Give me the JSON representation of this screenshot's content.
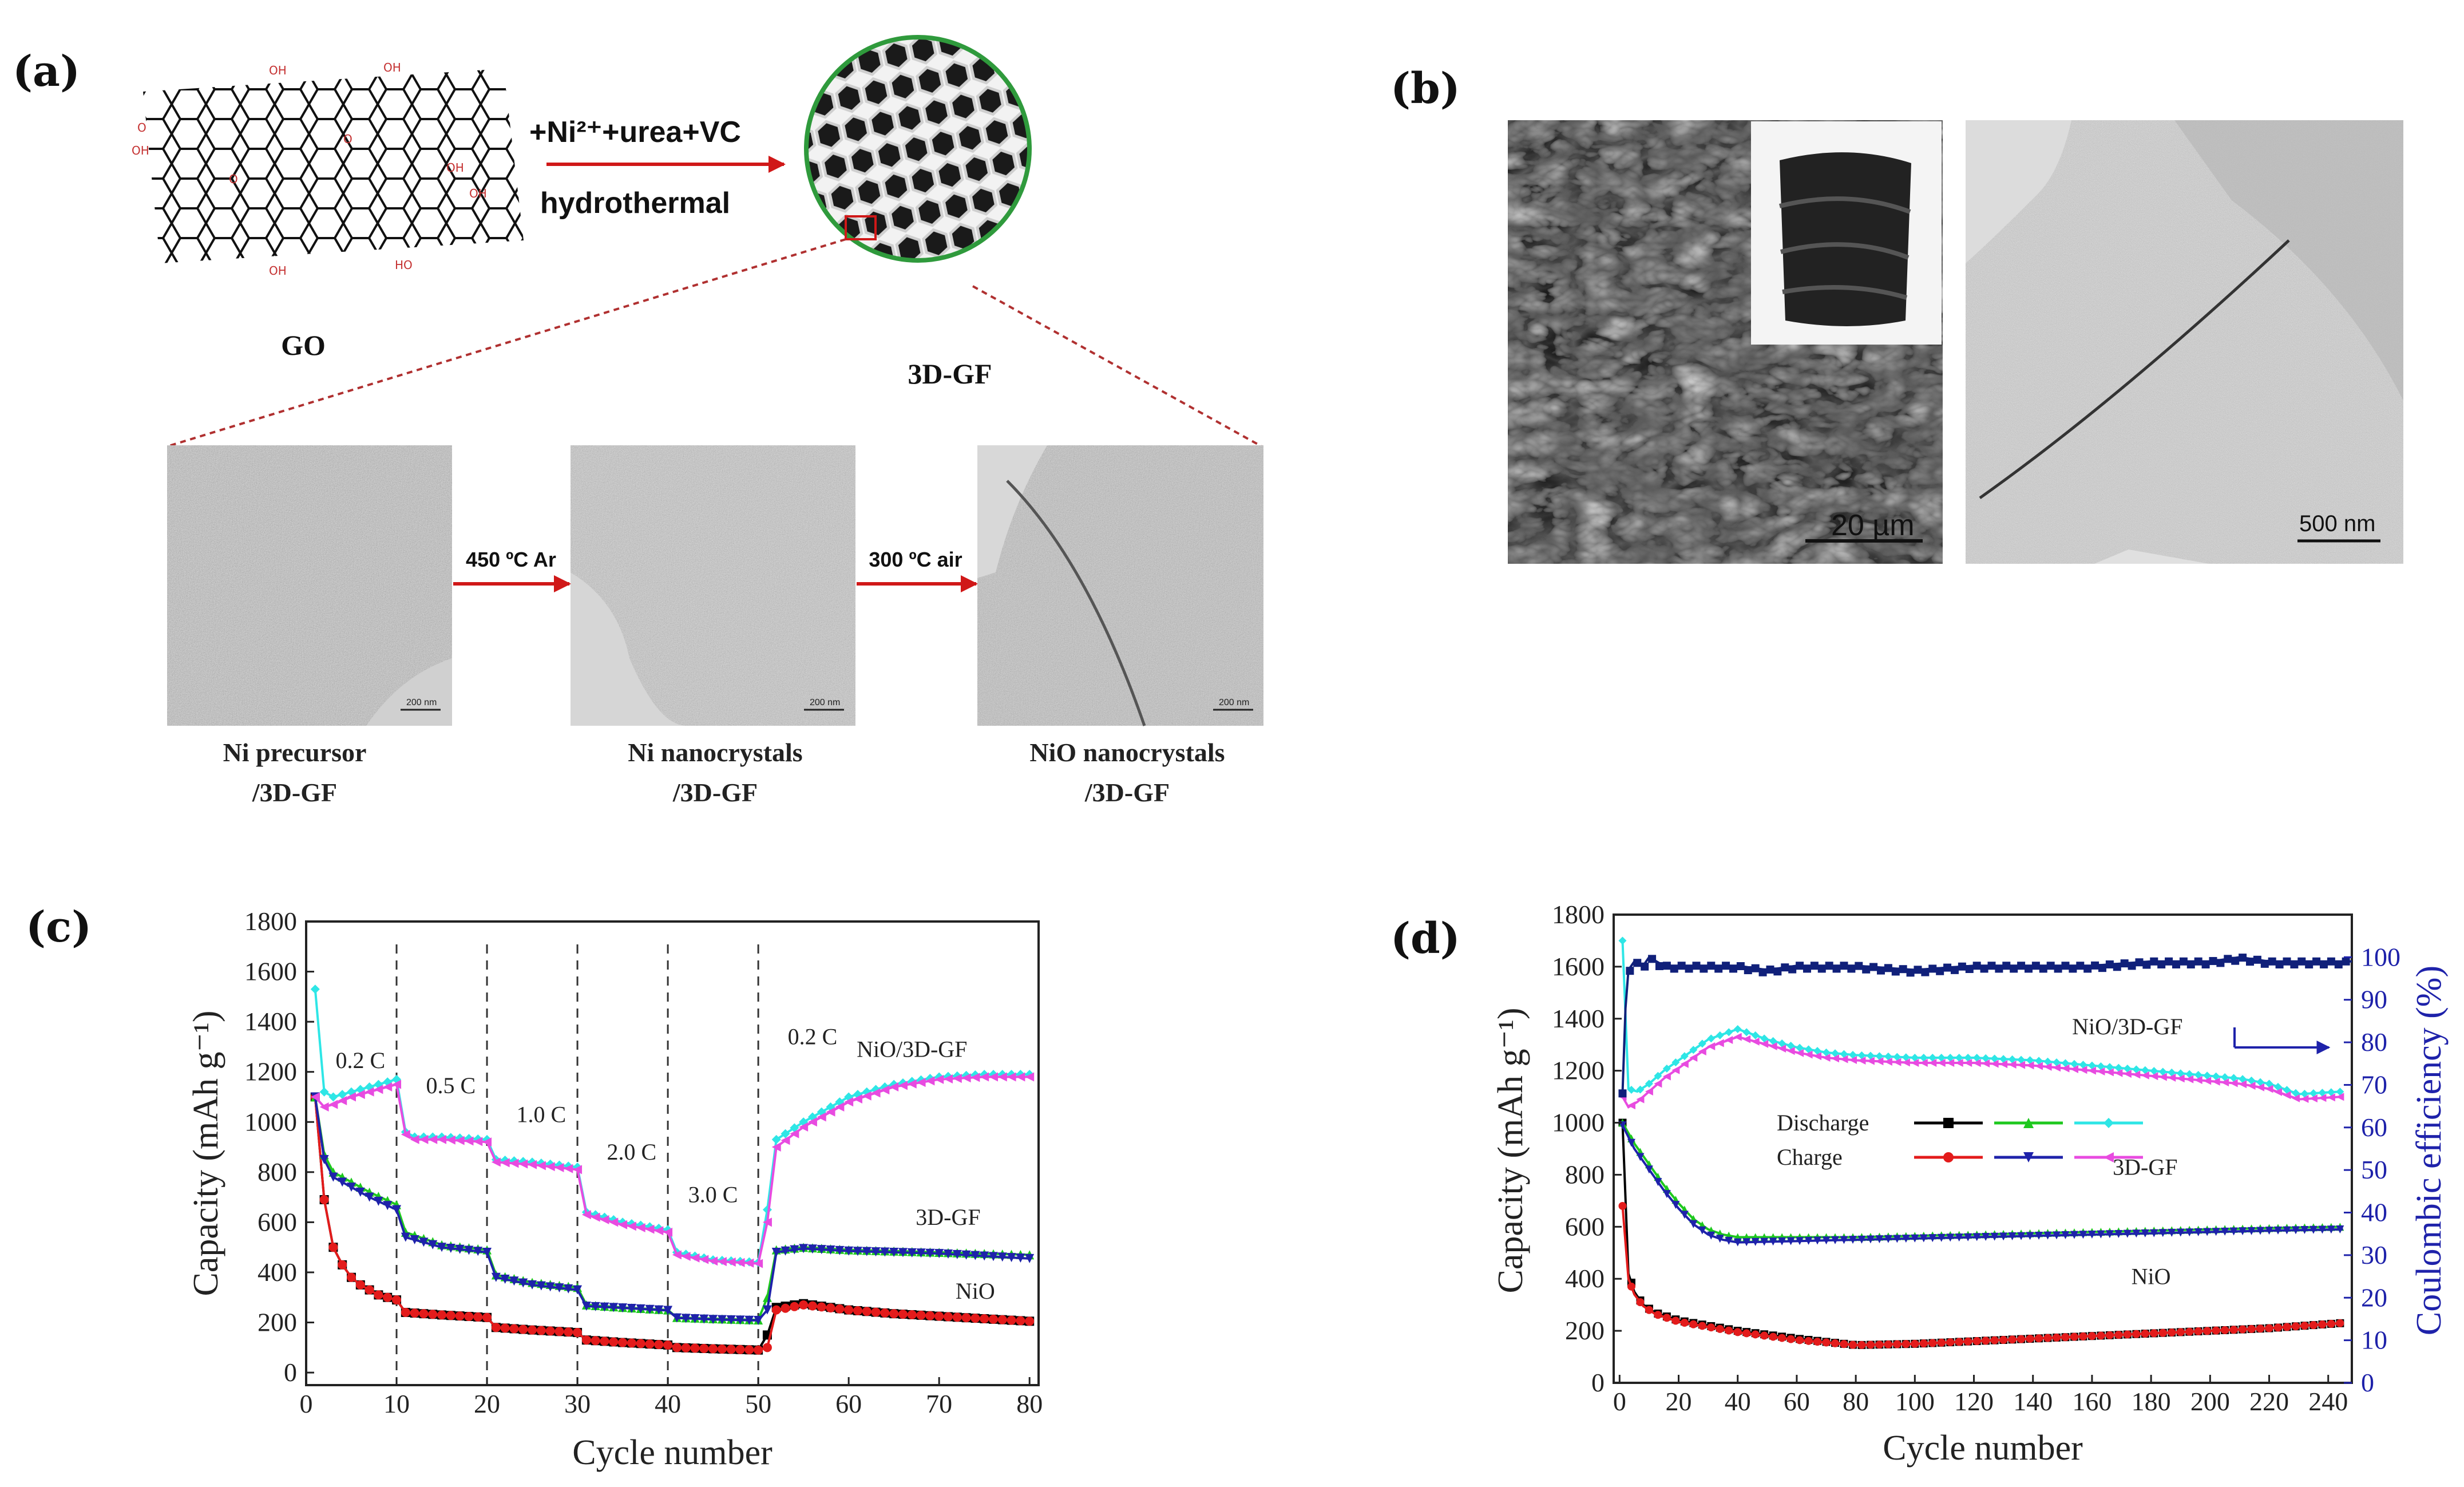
{
  "panel_labels": {
    "a": "(a)",
    "b": "(b)",
    "c": "(c)",
    "d": "(d)"
  },
  "schematic": {
    "go_label": "GO",
    "gf_label": "3D-GF",
    "reagents": "+Ni²⁺+urea+VC",
    "process": "hydrothermal",
    "step1": "450 ºC Ar",
    "step2": "300 ºC air",
    "tem": [
      {
        "line1": "Ni precursor",
        "line2": "/3D-GF",
        "scale": "200 nm"
      },
      {
        "line1": "Ni nanocrystals",
        "line2": "/3D-GF",
        "scale": "200 nm"
      },
      {
        "line1": "NiO nanocrystals",
        "line2": "/3D-GF",
        "scale": "200 nm"
      }
    ]
  },
  "micrographs": {
    "sem_scale": "20 µm",
    "tem_scale": "500 nm"
  },
  "chart_data": [
    {
      "type": "line",
      "panel": "c",
      "xlabel": "Cycle number",
      "ylabel": "Capacity (mAh g⁻¹)",
      "xlim": [
        0,
        81
      ],
      "ylim": [
        -50,
        1800
      ],
      "xticks": [
        0,
        10,
        20,
        30,
        40,
        50,
        60,
        70,
        80
      ],
      "yticks": [
        0,
        200,
        400,
        600,
        800,
        1000,
        1200,
        1400,
        1600,
        1800
      ],
      "dividers": [
        10,
        20,
        30,
        40,
        50
      ],
      "rate_labels": [
        {
          "text": "0.2 C",
          "x": 6,
          "y": 1215
        },
        {
          "text": "0.5 C",
          "x": 16,
          "y": 1115
        },
        {
          "text": "1.0 C",
          "x": 26,
          "y": 1000
        },
        {
          "text": "2.0 C",
          "x": 36,
          "y": 850
        },
        {
          "text": "3.0 C",
          "x": 45,
          "y": 680
        },
        {
          "text": "0.2 C",
          "x": 56,
          "y": 1310
        }
      ],
      "series_labels": [
        {
          "text": "NiO/3D-GF",
          "x": 67,
          "y": 1260
        },
        {
          "text": "3D-GF",
          "x": 71,
          "y": 590
        },
        {
          "text": "NiO",
          "x": 74,
          "y": 295
        }
      ],
      "series": [
        {
          "color": "#000000",
          "marker": "square",
          "x": [
            1,
            2,
            3,
            4,
            5,
            6,
            7,
            8,
            9,
            10,
            11,
            15,
            20,
            21,
            25,
            30,
            31,
            35,
            40,
            41,
            45,
            50,
            51,
            52,
            55,
            60,
            65,
            70,
            75,
            80
          ],
          "y": [
            1100,
            690,
            500,
            430,
            380,
            350,
            330,
            310,
            300,
            290,
            240,
            230,
            220,
            180,
            170,
            160,
            130,
            120,
            110,
            100,
            95,
            90,
            150,
            260,
            275,
            250,
            235,
            225,
            215,
            205
          ]
        },
        {
          "color": "#e31b1b",
          "marker": "circle",
          "x": [
            1,
            2,
            3,
            4,
            5,
            6,
            7,
            8,
            9,
            10,
            11,
            15,
            20,
            21,
            25,
            30,
            31,
            35,
            40,
            41,
            45,
            50,
            51,
            52,
            55,
            60,
            65,
            70,
            75,
            80
          ],
          "y": [
            1100,
            690,
            500,
            430,
            380,
            350,
            330,
            310,
            300,
            290,
            240,
            230,
            220,
            180,
            170,
            160,
            130,
            120,
            110,
            100,
            95,
            90,
            100,
            250,
            270,
            250,
            235,
            225,
            215,
            205
          ]
        },
        {
          "color": "#1ec81e",
          "marker": "triangle",
          "x": [
            1,
            2,
            3,
            5,
            7,
            10,
            11,
            15,
            20,
            21,
            25,
            30,
            31,
            35,
            40,
            41,
            45,
            50,
            51,
            52,
            55,
            60,
            65,
            70,
            75,
            80
          ],
          "y": [
            1100,
            870,
            800,
            760,
            720,
            670,
            560,
            510,
            490,
            390,
            360,
            340,
            270,
            260,
            250,
            220,
            215,
            210,
            300,
            490,
            500,
            490,
            485,
            480,
            475,
            470
          ]
        },
        {
          "color": "#1e22aa",
          "marker": "triangle-down",
          "x": [
            1,
            2,
            3,
            5,
            7,
            10,
            11,
            15,
            20,
            21,
            25,
            30,
            31,
            35,
            40,
            41,
            45,
            50,
            51,
            52,
            55,
            60,
            65,
            70,
            75,
            80
          ],
          "y": [
            1100,
            850,
            780,
            740,
            700,
            650,
            540,
            500,
            480,
            380,
            350,
            330,
            265,
            258,
            248,
            218,
            212,
            208,
            250,
            480,
            495,
            485,
            480,
            475,
            465,
            455
          ]
        },
        {
          "color": "#2ee6e6",
          "marker": "diamond",
          "x": [
            1,
            2,
            3,
            5,
            7,
            9,
            10,
            11,
            12,
            15,
            20,
            21,
            25,
            30,
            31,
            35,
            40,
            41,
            45,
            50,
            51,
            52,
            55,
            60,
            65,
            70,
            75,
            80
          ],
          "y": [
            1530,
            1120,
            1100,
            1120,
            1140,
            1160,
            1170,
            960,
            940,
            940,
            930,
            850,
            840,
            820,
            640,
            600,
            570,
            480,
            450,
            440,
            650,
            930,
            1000,
            1100,
            1150,
            1180,
            1190,
            1190
          ]
        },
        {
          "color": "#e84be0",
          "marker": "triangle-left",
          "x": [
            1,
            2,
            3,
            5,
            7,
            9,
            10,
            11,
            12,
            15,
            20,
            21,
            25,
            30,
            31,
            35,
            40,
            41,
            45,
            50,
            51,
            52,
            55,
            60,
            65,
            70,
            75,
            80
          ],
          "y": [
            1100,
            1060,
            1070,
            1100,
            1120,
            1140,
            1150,
            950,
            930,
            930,
            920,
            840,
            830,
            810,
            630,
            590,
            560,
            470,
            445,
            435,
            600,
            900,
            980,
            1080,
            1140,
            1170,
            1180,
            1180
          ]
        }
      ]
    },
    {
      "type": "line",
      "panel": "d",
      "xlabel": "Cycle number",
      "ylabel": "Capacity (mAh g⁻¹)",
      "ylabel_right": "Coulombic efficiency (%)",
      "xlim": [
        -2,
        248
      ],
      "ylim": [
        0,
        1800
      ],
      "ylim_right": [
        0,
        110
      ],
      "xticks": [
        0,
        20,
        40,
        60,
        80,
        100,
        120,
        140,
        160,
        180,
        200,
        220,
        240
      ],
      "yticks": [
        0,
        200,
        400,
        600,
        800,
        1000,
        1200,
        1400,
        1600,
        1800
      ],
      "yticks_right": [
        0,
        10,
        20,
        30,
        40,
        50,
        60,
        70,
        80,
        90,
        100
      ],
      "legend": {
        "discharge": "Discharge",
        "charge": "Charge"
      },
      "series_labels": [
        {
          "text": "NiO/3D-GF",
          "x": 172,
          "y": 1340
        },
        {
          "text": "3D-GF",
          "x": 178,
          "y": 800
        },
        {
          "text": "NiO",
          "x": 180,
          "y": 380
        }
      ],
      "series": [
        {
          "color": "#000000",
          "marker": "square",
          "x": [
            1,
            3,
            5,
            8,
            12,
            20,
            30,
            40,
            60,
            80,
            100,
            120,
            140,
            160,
            180,
            200,
            220,
            245
          ],
          "y": [
            1000,
            420,
            350,
            300,
            270,
            240,
            220,
            200,
            170,
            145,
            150,
            160,
            170,
            180,
            190,
            200,
            210,
            230
          ]
        },
        {
          "color": "#e31b1b",
          "marker": "circle",
          "x": [
            1,
            3,
            5,
            8,
            12,
            20,
            30,
            40,
            60,
            80,
            100,
            120,
            140,
            160,
            180,
            200,
            220,
            245
          ],
          "y": [
            680,
            400,
            340,
            295,
            265,
            235,
            215,
            195,
            165,
            145,
            150,
            160,
            170,
            180,
            190,
            200,
            210,
            230
          ]
        },
        {
          "color": "#1ec81e",
          "marker": "triangle",
          "x": [
            1,
            5,
            10,
            15,
            20,
            25,
            30,
            35,
            40,
            60,
            80,
            100,
            120,
            140,
            160,
            180,
            200,
            220,
            245
          ],
          "y": [
            1000,
            920,
            840,
            760,
            690,
            630,
            590,
            570,
            560,
            560,
            560,
            565,
            570,
            575,
            580,
            585,
            590,
            595,
            600
          ]
        },
        {
          "color": "#1e22aa",
          "marker": "triangle-down",
          "x": [
            1,
            5,
            10,
            15,
            20,
            25,
            30,
            35,
            40,
            60,
            80,
            100,
            120,
            140,
            160,
            180,
            200,
            220,
            245
          ],
          "y": [
            990,
            900,
            820,
            740,
            670,
            610,
            570,
            550,
            540,
            545,
            550,
            555,
            560,
            565,
            570,
            575,
            580,
            585,
            590
          ]
        },
        {
          "color": "#2ee6e6",
          "marker": "diamond",
          "x": [
            1,
            3,
            6,
            10,
            15,
            20,
            25,
            30,
            35,
            40,
            50,
            60,
            70,
            80,
            100,
            120,
            140,
            160,
            180,
            200,
            210,
            220,
            230,
            245
          ],
          "y": [
            1700,
            1130,
            1120,
            1150,
            1200,
            1240,
            1280,
            1320,
            1340,
            1360,
            1320,
            1290,
            1270,
            1260,
            1250,
            1250,
            1240,
            1220,
            1200,
            1180,
            1170,
            1150,
            1110,
            1120
          ]
        },
        {
          "color": "#e84be0",
          "marker": "triangle-left",
          "x": [
            1,
            3,
            6,
            10,
            15,
            20,
            25,
            30,
            35,
            40,
            50,
            60,
            70,
            80,
            100,
            120,
            140,
            160,
            180,
            200,
            210,
            220,
            230,
            245
          ],
          "y": [
            1100,
            1060,
            1080,
            1120,
            1170,
            1210,
            1250,
            1290,
            1310,
            1330,
            1300,
            1270,
            1250,
            1240,
            1230,
            1230,
            1220,
            1200,
            1180,
            1160,
            1150,
            1130,
            1090,
            1100
          ]
        }
      ],
      "coulombic_efficiency": {
        "color": "#10207a",
        "x": [
          1,
          2,
          3,
          5,
          8,
          10,
          15,
          20,
          30,
          40,
          50,
          60,
          80,
          100,
          120,
          140,
          160,
          180,
          200,
          210,
          220,
          240,
          248
        ],
        "y": [
          68,
          88,
          97,
          99,
          98,
          100,
          98,
          98,
          98,
          98,
          97,
          98,
          98,
          97,
          98,
          98,
          98,
          99,
          99,
          100,
          99,
          99,
          99
        ]
      }
    }
  ]
}
